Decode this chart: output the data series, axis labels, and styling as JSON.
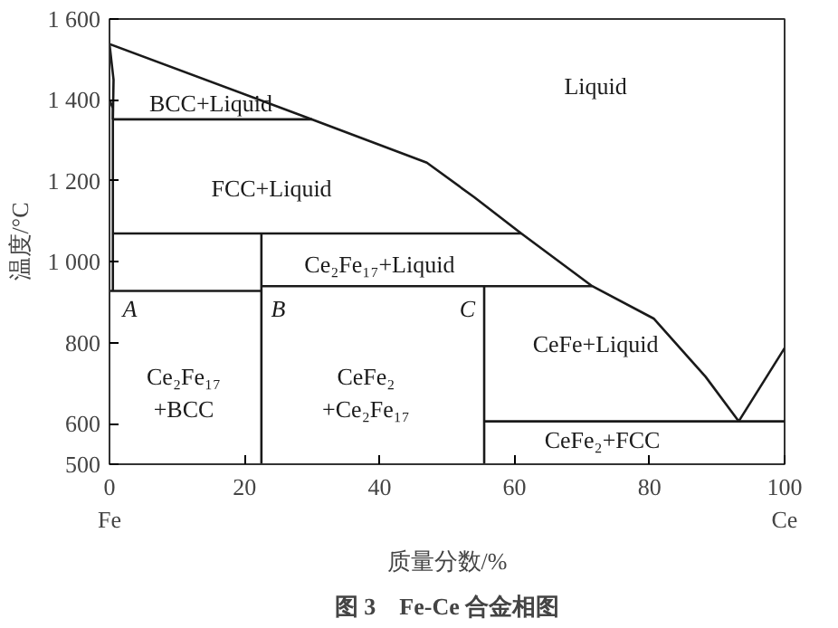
{
  "chart_data": {
    "type": "line",
    "title": "图 3　Fe-Ce 合金相图",
    "xlabel": "质量分数/%",
    "ylabel": "温度/°C",
    "xlim": [
      0,
      100
    ],
    "ylim": [
      500,
      1600
    ],
    "xticks": [
      {
        "value": 0,
        "label": "0\nFe"
      },
      20,
      40,
      60,
      80,
      {
        "value": 100,
        "label": "100\nCe"
      }
    ],
    "yticks": [
      500,
      600,
      800,
      {
        "value": 1000,
        "label": "1 000"
      },
      {
        "value": 1200,
        "label": "1 200"
      },
      {
        "value": 1400,
        "label": "1 400"
      },
      {
        "value": 1600,
        "label": "1 600"
      }
    ],
    "grid": false,
    "marker": "none",
    "line_style": "solid",
    "series": [
      {
        "color": "#1a1a1a",
        "x": [
          0,
          30,
          47,
          54,
          61,
          71.5,
          80.6,
          88.3,
          93.2,
          100
        ],
        "values": [
          1538,
          1352,
          1245,
          1160,
          1070,
          940,
          860,
          716,
          606,
          787
        ]
      },
      {
        "color": "#1a1a1a",
        "x": [
          0,
          0.6,
          0.5
        ],
        "values": [
          1538,
          1450,
          1352
        ]
      },
      {
        "color": "#1a1a1a",
        "x": [
          0,
          0.5,
          0.5
        ],
        "values": [
          1400,
          1380,
          928
        ]
      },
      {
        "color": "#1a1a1a",
        "x": [
          0.5,
          30
        ],
        "values": [
          1352,
          1352
        ]
      },
      {
        "color": "#1a1a1a",
        "x": [
          0.5,
          61
        ],
        "values": [
          1070,
          1070
        ]
      },
      {
        "color": "#1a1a1a",
        "x": [
          0,
          22.5
        ],
        "values": [
          928,
          928
        ]
      },
      {
        "color": "#1a1a1a",
        "x": [
          22.5,
          22.5
        ],
        "values": [
          500,
          1070
        ]
      },
      {
        "color": "#1a1a1a",
        "x": [
          22.5,
          71.5
        ],
        "values": [
          940,
          940
        ]
      },
      {
        "color": "#1a1a1a",
        "x": [
          55.5,
          55.5
        ],
        "values": [
          500,
          940
        ]
      },
      {
        "color": "#1a1a1a",
        "x": [
          55.5,
          100
        ],
        "values": [
          606,
          606
        ]
      }
    ],
    "annotations": [
      "BCC+Liquid",
      "Liquid",
      "FCC+Liquid",
      "Ce₂Fe₁₇+Liquid",
      "A",
      "B",
      "C",
      "Ce₂Fe₁₇\n+BCC",
      "CeFe₂\n+Ce₂Fe₁₇",
      "CeFe+Liquid",
      "CeFe₂+FCC"
    ]
  }
}
